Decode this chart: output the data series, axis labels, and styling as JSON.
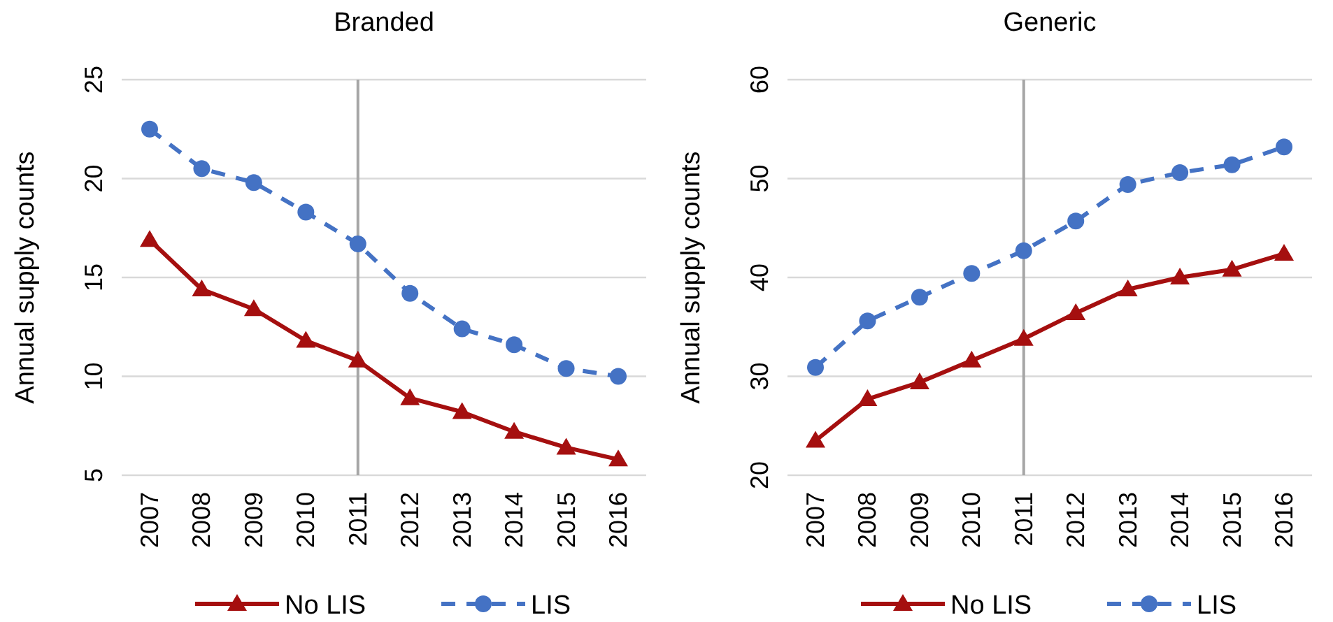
{
  "chart_data": [
    {
      "type": "line",
      "title": "Branded",
      "ylabel": "Annual supply counts",
      "categories": [
        "2007",
        "2008",
        "2009",
        "2010",
        "2011",
        "2012",
        "2013",
        "2014",
        "2015",
        "2016"
      ],
      "ylim": [
        5,
        25
      ],
      "yticks": [
        5,
        10,
        15,
        20,
        25
      ],
      "grid": "y",
      "legend": "bottom",
      "ref_lines": [
        {
          "axis": "x",
          "value": "2011",
          "color": "#a6a6a6"
        }
      ],
      "series": [
        {
          "name": "No LIS",
          "color": "#a50f0f",
          "marker": "triangle",
          "line_style": "solid",
          "values": [
            16.9,
            14.4,
            13.4,
            11.8,
            10.8,
            8.9,
            8.2,
            7.2,
            6.4,
            5.8
          ]
        },
        {
          "name": "LIS",
          "color": "#4472c4",
          "marker": "circle",
          "line_style": "dashed",
          "values": [
            22.5,
            20.5,
            19.8,
            18.3,
            16.7,
            14.2,
            12.4,
            11.6,
            10.4,
            10.0
          ]
        }
      ]
    },
    {
      "type": "line",
      "title": "Generic",
      "ylabel": "Annual supply counts",
      "categories": [
        "2007",
        "2008",
        "2009",
        "2010",
        "2011",
        "2012",
        "2013",
        "2014",
        "2015",
        "2016"
      ],
      "ylim": [
        20,
        60
      ],
      "yticks": [
        20,
        30,
        40,
        50,
        60
      ],
      "grid": "y",
      "legend": "bottom",
      "ref_lines": [
        {
          "axis": "x",
          "value": "2011",
          "color": "#a6a6a6"
        }
      ],
      "series": [
        {
          "name": "No LIS",
          "color": "#a50f0f",
          "marker": "triangle",
          "line_style": "solid",
          "values": [
            23.5,
            27.7,
            29.4,
            31.6,
            33.8,
            36.4,
            38.8,
            40.0,
            40.8,
            42.4
          ]
        },
        {
          "name": "LIS",
          "color": "#4472c4",
          "marker": "circle",
          "line_style": "dashed",
          "values": [
            30.9,
            35.6,
            38.0,
            40.4,
            42.7,
            45.7,
            49.4,
            50.6,
            51.4,
            53.2
          ]
        }
      ]
    }
  ]
}
